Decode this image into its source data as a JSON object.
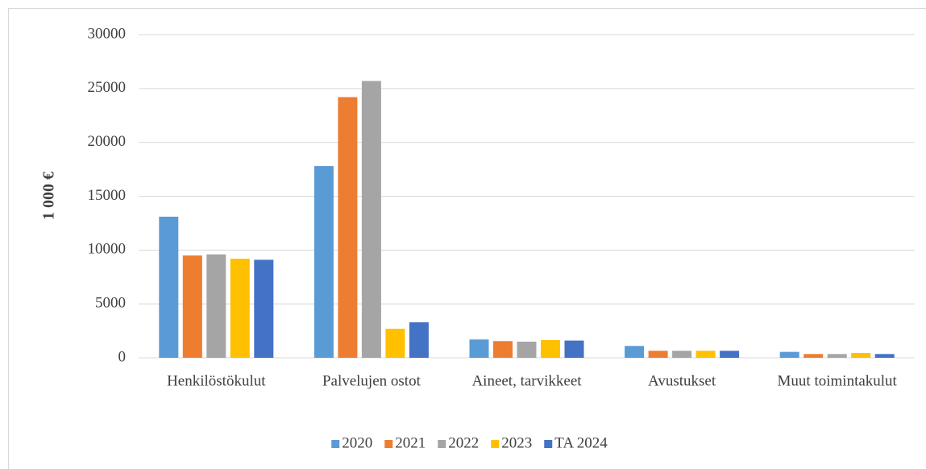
{
  "chart_data": {
    "type": "bar",
    "y_label": "1 000 €",
    "categories": [
      "Henkilöstökulut",
      "Palvelujen ostot",
      "Aineet, tarvikkeet",
      "Avustukset",
      "Muut toimintakulut"
    ],
    "series": [
      {
        "name": "2020",
        "color": "#5b9bd5",
        "values": [
          13100,
          17800,
          1700,
          1100,
          550
        ]
      },
      {
        "name": "2021",
        "color": "#ed7d31",
        "values": [
          9500,
          24200,
          1550,
          650,
          350
        ]
      },
      {
        "name": "2022",
        "color": "#a5a5a5",
        "values": [
          9600,
          25700,
          1500,
          650,
          350
        ]
      },
      {
        "name": "2023",
        "color": "#ffc000",
        "values": [
          9200,
          2700,
          1650,
          650,
          450
        ]
      },
      {
        "name": "TA 2024",
        "color": "#4472c4",
        "values": [
          9100,
          3300,
          1600,
          650,
          350
        ]
      }
    ],
    "ylim": [
      0,
      30000
    ],
    "yticks": [
      0,
      5000,
      10000,
      15000,
      20000,
      25000,
      30000
    ],
    "grid": true,
    "legend": "bottom"
  }
}
